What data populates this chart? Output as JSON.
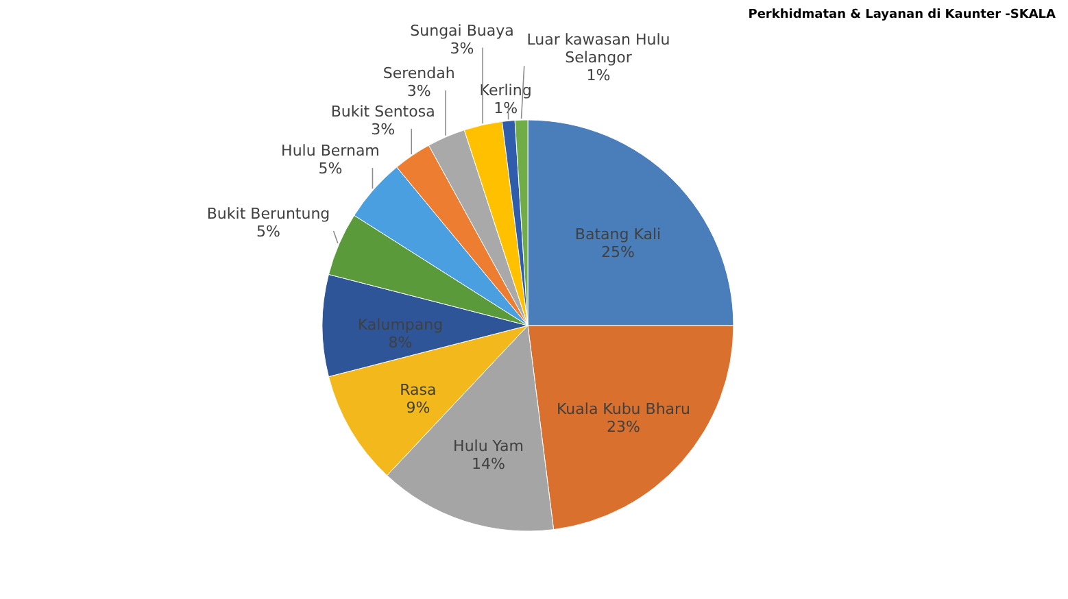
{
  "chart_data": {
    "type": "pie",
    "title": "Perkhidmatan & Layanan di Kaunter -SKALA",
    "categories": [
      "Batang Kali",
      "Kuala Kubu Bharu",
      "Hulu Yam",
      "Rasa",
      "Kalumpang",
      "Bukit Beruntung",
      "Hulu Bernam",
      "Bukit Sentosa",
      "Serendah",
      "Sungai Buaya",
      "Kerling",
      "Luar kawasan Hulu Selangor"
    ],
    "values": [
      25,
      23,
      14,
      9,
      8,
      5,
      5,
      3,
      3,
      3,
      1,
      1
    ],
    "value_labels": [
      "25%",
      "23%",
      "14%",
      "9%",
      "8%",
      "5%",
      "5%",
      "3%",
      "3%",
      "3%",
      "1%",
      "1%"
    ],
    "colors": [
      "#4a7ebb",
      "#d9702e",
      "#a5a5a5",
      "#f2b81c",
      "#2e5597",
      "#5a9a3a",
      "#4a9fe0",
      "#ed7d31",
      "#a9a9a9",
      "#ffc000",
      "#2f5dab",
      "#70ad47"
    ]
  }
}
